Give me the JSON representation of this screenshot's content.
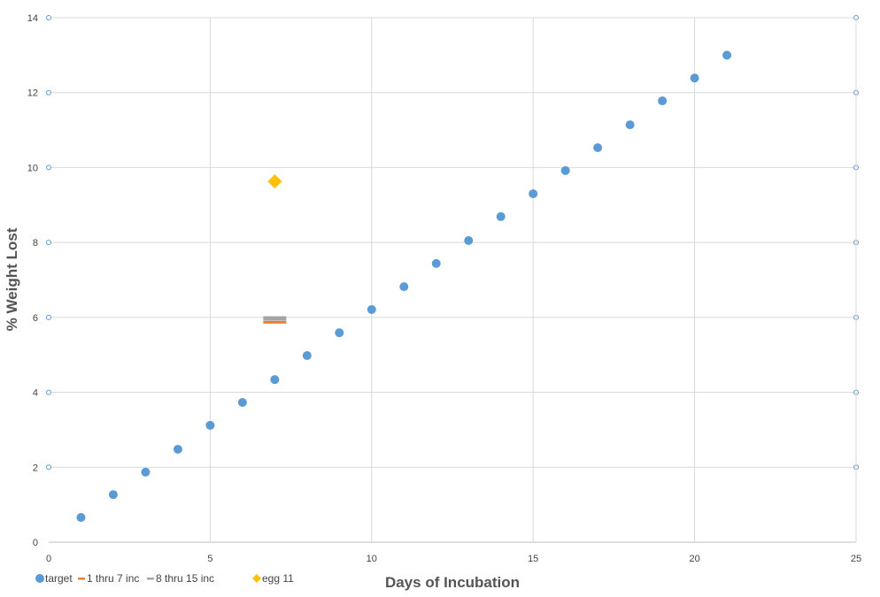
{
  "chart_data": {
    "type": "scatter",
    "title": "",
    "xlabel": "Days of Incubation",
    "ylabel": "% Weight Lost",
    "xlim": [
      0,
      25
    ],
    "ylim": [
      0,
      14
    ],
    "xticks": [
      0,
      5,
      10,
      15,
      20,
      25
    ],
    "yticks": [
      0,
      2,
      4,
      6,
      8,
      10,
      12,
      14
    ],
    "grid": true,
    "legend_position": "bottom-left",
    "series": [
      {
        "name": "target",
        "marker": "circle",
        "color": "#5B9BD5",
        "x": [
          1,
          2,
          3,
          4,
          5,
          6,
          7,
          8,
          9,
          10,
          11,
          12,
          13,
          14,
          15,
          16,
          17,
          18,
          19,
          20,
          21
        ],
        "y": [
          0.66,
          1.27,
          1.87,
          2.48,
          3.12,
          3.73,
          4.34,
          4.98,
          5.59,
          6.21,
          6.82,
          7.44,
          8.05,
          8.69,
          9.3,
          9.92,
          10.53,
          11.14,
          11.78,
          12.39,
          13.0
        ]
      },
      {
        "name": "1 thru 7 inc",
        "marker": "dash",
        "color": "#ED7D31",
        "x": [
          7
        ],
        "y": [
          5.87
        ]
      },
      {
        "name": "8 thru 15 inc",
        "marker": "dash",
        "color": "#A5A5A5",
        "x": [
          7
        ],
        "y": [
          5.96
        ]
      },
      {
        "name": "egg 11",
        "marker": "diamond",
        "color": "#FFC000",
        "x": [
          7
        ],
        "y": [
          9.63
        ]
      }
    ]
  }
}
